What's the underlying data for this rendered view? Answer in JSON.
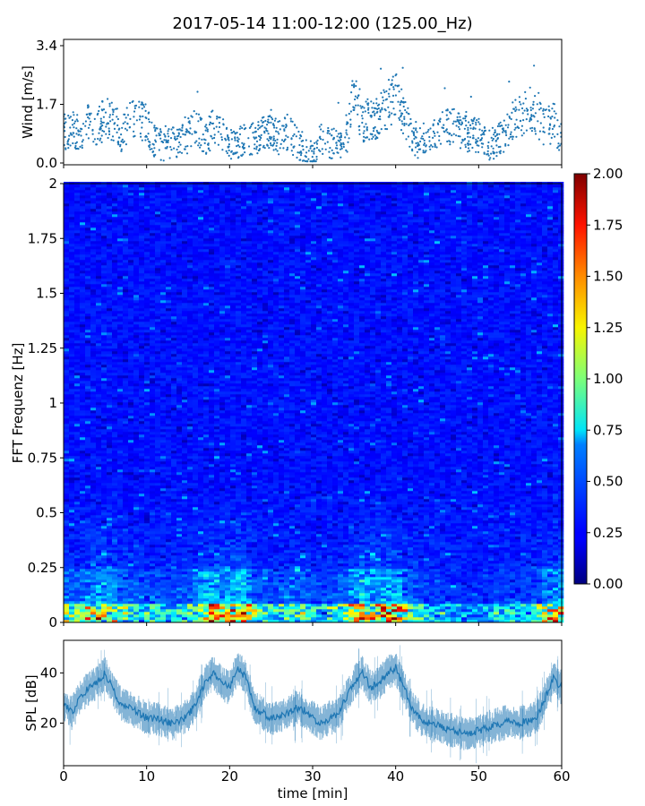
{
  "figure_title": "2017-05-14 11:00-12:00 (125.00_Hz)",
  "chart_data": [
    {
      "type": "scatter",
      "ylabel": "Wind [m/s]",
      "ylim": [
        0,
        3.4
      ],
      "xlim": [
        0,
        60
      ],
      "yticks": [
        "0.0",
        "1.7",
        "3.4"
      ],
      "marker_color": "#1f77b4",
      "series": [
        {
          "x": [
            0,
            1,
            2,
            3,
            4,
            5,
            6,
            7,
            8,
            9,
            10,
            11,
            12,
            13,
            14,
            15,
            16,
            17,
            18,
            19,
            20,
            21,
            22,
            23,
            24,
            25,
            26,
            27,
            28,
            29,
            30,
            31,
            32,
            33,
            34,
            35,
            36,
            37,
            38,
            39,
            40,
            41,
            42,
            43,
            44,
            45,
            46,
            47,
            48,
            49,
            50,
            51,
            52,
            53,
            54,
            55,
            56,
            57,
            58,
            59,
            60
          ],
          "y": [
            0.9,
            1.0,
            0.8,
            1.2,
            1.0,
            1.3,
            1.2,
            0.8,
            1.3,
            1.4,
            1.1,
            0.6,
            0.5,
            0.6,
            0.6,
            0.8,
            1.1,
            0.7,
            1.0,
            0.8,
            0.5,
            0.6,
            0.6,
            0.7,
            0.9,
            1.0,
            0.7,
            0.9,
            0.6,
            0.3,
            0.3,
            0.7,
            0.6,
            0.5,
            0.6,
            2.0,
            1.2,
            1.3,
            1.3,
            1.7,
            1.9,
            1.4,
            0.7,
            0.4,
            0.6,
            0.9,
            1.0,
            1.2,
            0.9,
            0.8,
            0.8,
            0.5,
            0.6,
            0.8,
            1.2,
            1.4,
            1.6,
            1.3,
            1.0,
            1.2,
            0.7
          ]
        }
      ]
    },
    {
      "type": "heatmap",
      "ylabel": "FFT Frequenz [Hz]",
      "ylim": [
        0,
        2
      ],
      "xlim": [
        0,
        60
      ],
      "yticks": [
        "0",
        "0.25",
        "0.5",
        "0.75",
        "1",
        "1.25",
        "1.5",
        "1.75",
        "2"
      ],
      "colormap": "jet",
      "colorbar": {
        "range": [
          0,
          2
        ],
        "ticks": [
          "0.00",
          "0.25",
          "0.50",
          "0.75",
          "1.00",
          "1.25",
          "1.50",
          "1.75",
          "2.00"
        ]
      }
    },
    {
      "type": "line",
      "ylabel": "SPL [dB]",
      "xlabel": "time [min]",
      "xlim": [
        0,
        60
      ],
      "ylim": [
        3,
        53
      ],
      "yticks": [
        "20",
        "40"
      ],
      "xticks": [
        "0",
        "10",
        "20",
        "30",
        "40",
        "50",
        "60"
      ],
      "line_color": "#1f77b4",
      "series": [
        {
          "x": [
            0,
            1,
            2,
            3,
            4,
            5,
            6,
            7,
            8,
            9,
            10,
            11,
            12,
            13,
            14,
            15,
            16,
            17,
            18,
            19,
            20,
            21,
            22,
            23,
            24,
            25,
            26,
            27,
            28,
            29,
            30,
            31,
            32,
            33,
            34,
            35,
            36,
            37,
            38,
            39,
            40,
            41,
            42,
            43,
            44,
            45,
            46,
            47,
            48,
            49,
            50,
            51,
            52,
            53,
            54,
            55,
            56,
            57,
            58,
            59,
            60
          ],
          "y": [
            28,
            24,
            30,
            34,
            36,
            40,
            33,
            27,
            26,
            24,
            22,
            22,
            21,
            20,
            21,
            23,
            28,
            36,
            40,
            36,
            34,
            42,
            38,
            26,
            24,
            22,
            23,
            24,
            26,
            25,
            22,
            20,
            22,
            23,
            30,
            36,
            40,
            34,
            36,
            40,
            42,
            34,
            26,
            22,
            20,
            19,
            18,
            17,
            16,
            16,
            17,
            18,
            19,
            20,
            21,
            20,
            21,
            22,
            30,
            38,
            34
          ]
        }
      ]
    }
  ]
}
